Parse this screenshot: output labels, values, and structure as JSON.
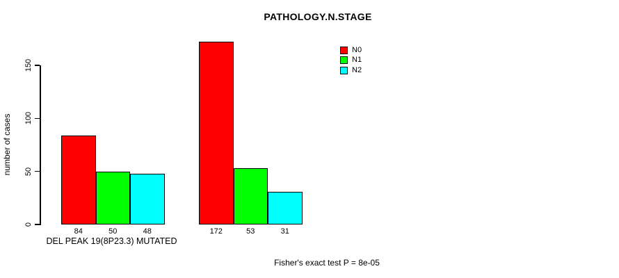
{
  "chart_data": {
    "type": "bar",
    "title": "PATHOLOGY.N.STAGE",
    "ylabel": "number of cases",
    "xlabel": "",
    "categories": [
      "DEL PEAK 19(8P23.3) MUTATED",
      ""
    ],
    "series": [
      {
        "name": "N0",
        "color": "#FF0000",
        "values": [
          84,
          172
        ]
      },
      {
        "name": "N1",
        "color": "#00FF00",
        "values": [
          50,
          53
        ]
      },
      {
        "name": "N2",
        "color": "#00FFFF",
        "values": [
          48,
          31
        ]
      }
    ],
    "yticks": [
      0,
      50,
      100,
      150
    ],
    "ylim": [
      0,
      175
    ],
    "grid": false,
    "legend_position": "top-right",
    "annotation": "Fisher's exact test P = 8e-05",
    "bar_border_color": "#000000",
    "background_color": "#FFFFFF"
  }
}
